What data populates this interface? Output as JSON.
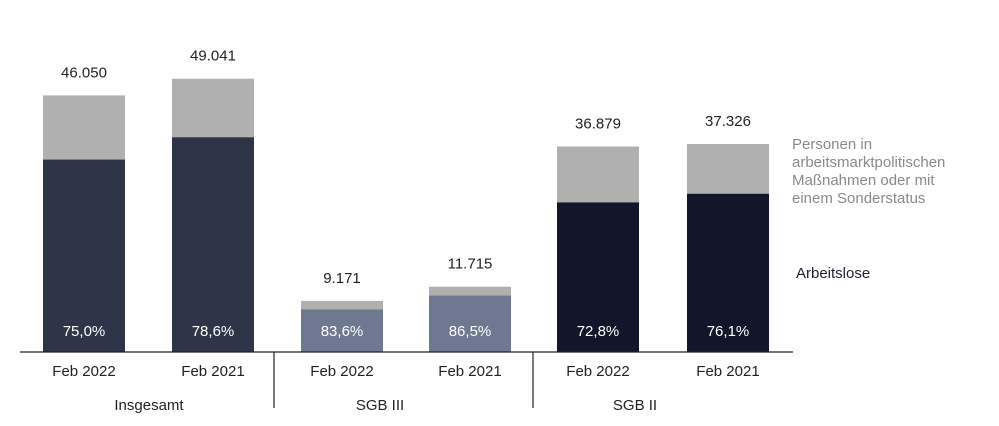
{
  "chart_data": {
    "type": "bar",
    "stacked": true,
    "groups": [
      {
        "label": "Insgesamt",
        "bars": [
          {
            "category": "Feb 2022",
            "total": 46050,
            "total_label": "46.050",
            "arbeitslose_share": 75.0,
            "share_label": "75,0%",
            "color": "#2e3548"
          },
          {
            "category": "Feb 2021",
            "total": 49041,
            "total_label": "49.041",
            "arbeitslose_share": 78.6,
            "share_label": "78,6%",
            "color": "#2e3548"
          }
        ]
      },
      {
        "label": "SGB III",
        "bars": [
          {
            "category": "Feb 2022",
            "total": 9171,
            "total_label": "9.171",
            "arbeitslose_share": 83.6,
            "share_label": "83,6%",
            "color": "#6e7891"
          },
          {
            "category": "Feb 2021",
            "total": 11715,
            "total_label": "11.715",
            "arbeitslose_share": 86.5,
            "share_label": "86,5%",
            "color": "#6e7891"
          }
        ]
      },
      {
        "label": "SGB II",
        "bars": [
          {
            "category": "Feb 2022",
            "total": 36879,
            "total_label": "36.879",
            "arbeitslose_share": 72.8,
            "share_label": "72,8%",
            "color": "#11162a"
          },
          {
            "category": "Feb 2021",
            "total": 37326,
            "total_label": "37.326",
            "arbeitslose_share": 76.1,
            "share_label": "76,1%",
            "color": "#11162a"
          }
        ]
      }
    ],
    "series": [
      {
        "name": "Arbeitslose",
        "role": "bottom"
      },
      {
        "name": "Personen in arbeitsmarktpolitischen Maßnahmen oder mit einem Sonderstatus",
        "role": "top",
        "color": "#b0b0b0"
      }
    ],
    "ylim": [
      0,
      55000
    ],
    "legend": {
      "massnahmen": [
        "Personen in",
        "arbeitsmarktpolitischen",
        "Maßnahmen oder mit",
        "einem Sonderstatus"
      ],
      "arbeitslose": "Arbeitslose"
    }
  }
}
